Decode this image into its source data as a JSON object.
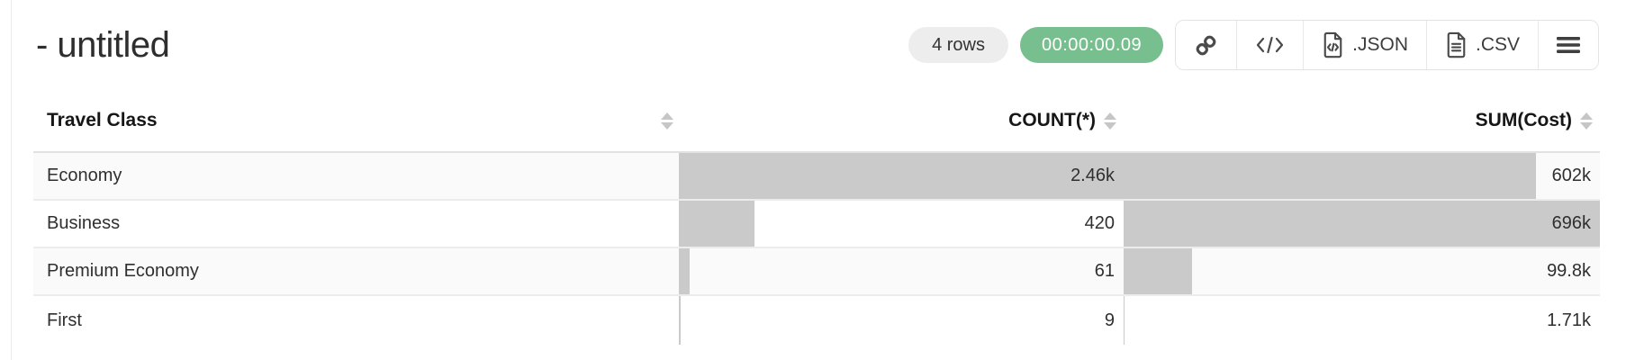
{
  "header": {
    "title": "- untitled",
    "rows_badge": "4 rows",
    "timer": "00:00:00.09"
  },
  "toolbar": {
    "export_json_label": ".JSON",
    "export_csv_label": ".CSV"
  },
  "colors": {
    "timer_bg": "#77bf8e",
    "timer_text": "#ffffff",
    "rows_badge_bg": "#ededed",
    "bar": "#cacaca",
    "stripe": "#fafafa"
  },
  "table": {
    "columns": [
      {
        "label": "Travel Class",
        "align": "left"
      },
      {
        "label": "COUNT(*)",
        "align": "right"
      },
      {
        "label": "SUM(Cost)",
        "align": "right"
      }
    ],
    "rows": [
      {
        "travel_class": "Economy",
        "count": 2460,
        "count_label": "2.46k",
        "sum": 602000,
        "sum_label": "602k"
      },
      {
        "travel_class": "Business",
        "count": 420,
        "count_label": "420",
        "sum": 696000,
        "sum_label": "696k"
      },
      {
        "travel_class": "Premium Economy",
        "count": 61,
        "count_label": "61",
        "sum": 99800,
        "sum_label": "99.8k"
      },
      {
        "travel_class": "First",
        "count": 9,
        "count_label": "9",
        "sum": 1710,
        "sum_label": "1.71k"
      }
    ]
  },
  "chart_data": {
    "type": "table",
    "title": "- untitled",
    "categories": [
      "Economy",
      "Business",
      "Premium Economy",
      "First"
    ],
    "series": [
      {
        "name": "COUNT(*)",
        "values": [
          2460,
          420,
          61,
          9
        ]
      },
      {
        "name": "SUM(Cost)",
        "values": [
          602000,
          696000,
          99800,
          1710
        ]
      }
    ],
    "note": "inline horizontal bars scaled to column max"
  }
}
